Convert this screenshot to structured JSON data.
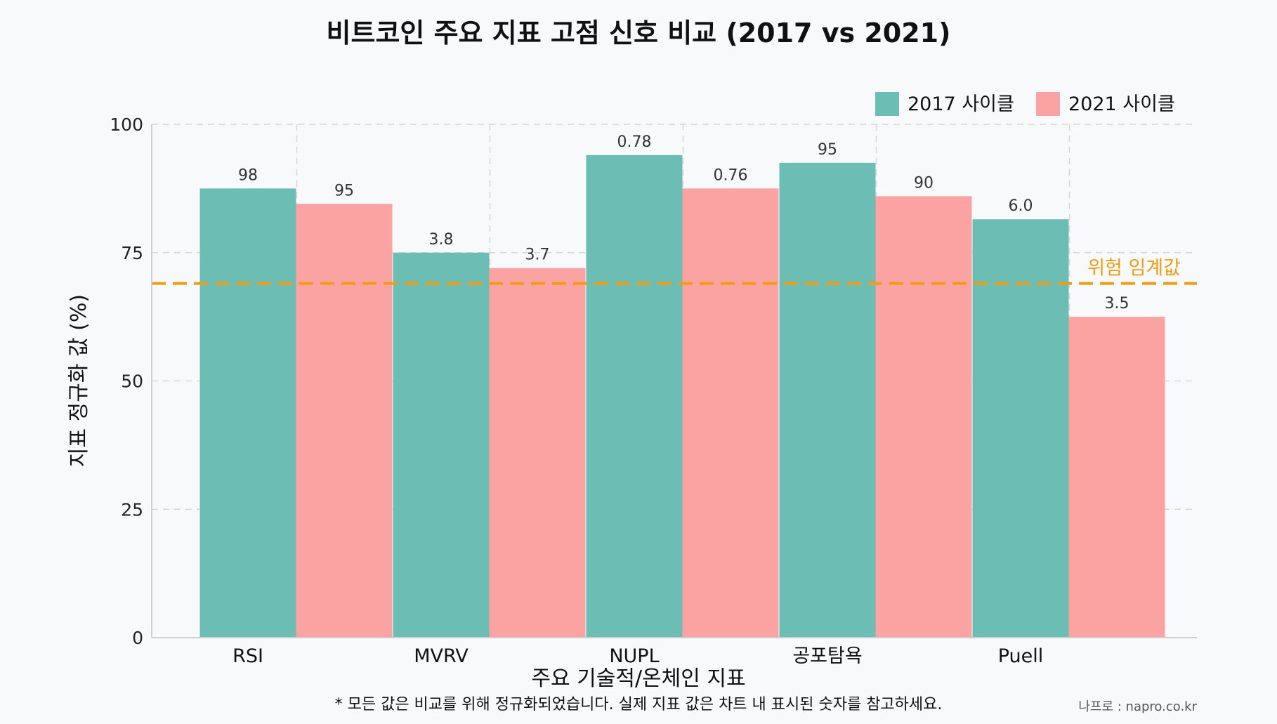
{
  "colors": {
    "series_2017": "#6cbdb4",
    "series_2021": "#fba3a3",
    "threshold": "#f39c12",
    "grid": "#d6d6d6",
    "axis": "#cfcfcf"
  },
  "chart_data": {
    "type": "bar",
    "title": "비트코인 주요 지표 고점 신호 비교 (2017 vs 2021)",
    "xlabel": "주요 기술적/온체인 지표",
    "ylabel": "지표 정규화 값 (%)",
    "ylim": [
      0,
      100
    ],
    "yticks": [
      "0",
      "25",
      "50",
      "75",
      "100"
    ],
    "categories": [
      "RSI",
      "MVRV",
      "NUPL",
      "공포탐욕",
      "Puell"
    ],
    "series": [
      {
        "name": "2017 사이클",
        "values": [
          87.5,
          75,
          94,
          92.5,
          81.5
        ],
        "labels": [
          "98",
          "3.8",
          "0.78",
          "95",
          "6.0"
        ]
      },
      {
        "name": "2021 사이클",
        "values": [
          84.5,
          72,
          87.5,
          86,
          62.5
        ],
        "labels": [
          "95",
          "3.7",
          "0.76",
          "90",
          "3.5"
        ]
      }
    ],
    "threshold": {
      "label": "위험 임계값",
      "value": 69
    },
    "grid": true,
    "legend_position": "top-right",
    "footnote": "* 모든 값은 비교를 위해 정규화되었습니다. 실제 지표 값은 차트 내 표시된 숫자를 참고하세요.",
    "credit": "나프로 : napro.co.kr"
  }
}
